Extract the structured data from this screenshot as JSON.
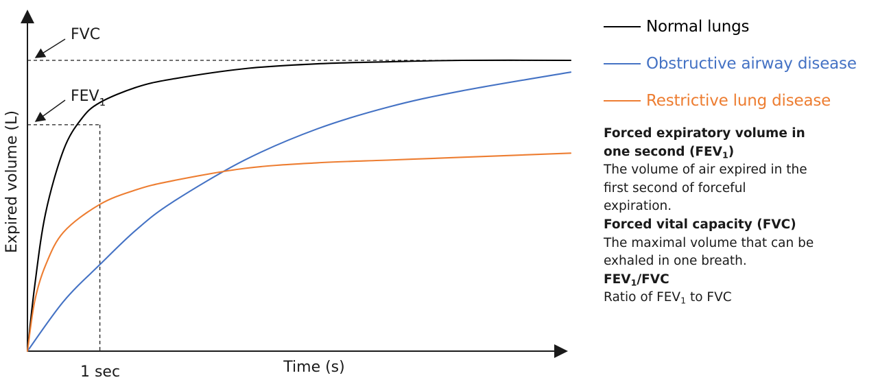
{
  "chart_data": {
    "type": "line",
    "title": "",
    "xlabel": "Time (s)",
    "ylabel": "Expired volume (L)",
    "grid": false,
    "legend_position": "right",
    "x_ticks": [
      {
        "x": 1.0,
        "label": "1 sec"
      }
    ],
    "annotations": [
      {
        "label": "FVC",
        "y": 4.2
      },
      {
        "label_main": "FEV",
        "label_sub": "1",
        "x": 1.0,
        "y": 3.27
      }
    ],
    "series": [
      {
        "name": "Normal lungs",
        "color": "#000000",
        "x": [
          0.0,
          0.1,
          0.25,
          0.5,
          0.75,
          1.0,
          1.5,
          2.0,
          3.0,
          4.0,
          5.0,
          6.0,
          7.5
        ],
        "y": [
          0.0,
          0.94,
          1.99,
          2.91,
          3.36,
          3.59,
          3.81,
          3.93,
          4.08,
          4.15,
          4.18,
          4.2,
          4.2
        ]
      },
      {
        "name": "Obstructive airway disease",
        "color": "#4472C4",
        "x": [
          0.0,
          0.5,
          1.0,
          1.5,
          2.0,
          3.0,
          4.0,
          5.0,
          6.0,
          7.5
        ],
        "y": [
          0.0,
          0.72,
          1.25,
          1.75,
          2.15,
          2.76,
          3.21,
          3.53,
          3.76,
          4.03
        ]
      },
      {
        "name": "Restrictive lung disease",
        "color": "#ED7D31",
        "x": [
          0.0,
          0.1,
          0.25,
          0.5,
          1.0,
          1.5,
          2.0,
          3.0,
          4.0,
          5.0,
          6.0,
          7.5
        ],
        "y": [
          0.0,
          0.72,
          1.24,
          1.72,
          2.12,
          2.33,
          2.46,
          2.64,
          2.72,
          2.76,
          2.8,
          2.86
        ]
      }
    ],
    "xlim": [
      0,
      7.5
    ],
    "ylim": [
      0,
      4.2
    ]
  },
  "definitions": [
    {
      "term_lines": [
        {
          "text": "Forced expiratory volume in"
        },
        {
          "text": "one second (FEV",
          "sub": "1",
          "after": ")"
        }
      ],
      "desc_lines": [
        "The volume of air expired in the",
        "first second of forceful",
        "expiration."
      ]
    },
    {
      "term_lines": [
        {
          "text": "Forced vital capacity (FVC)"
        }
      ],
      "desc_lines": [
        "The maximal volume that can be",
        "exhaled in one breath."
      ]
    },
    {
      "term_lines": [
        {
          "text": "FEV",
          "sub": "1",
          "after": "/FVC"
        }
      ],
      "desc_lines": [
        {
          "text": "Ratio of FEV",
          "sub": "1",
          "after": " to FVC"
        }
      ]
    }
  ]
}
